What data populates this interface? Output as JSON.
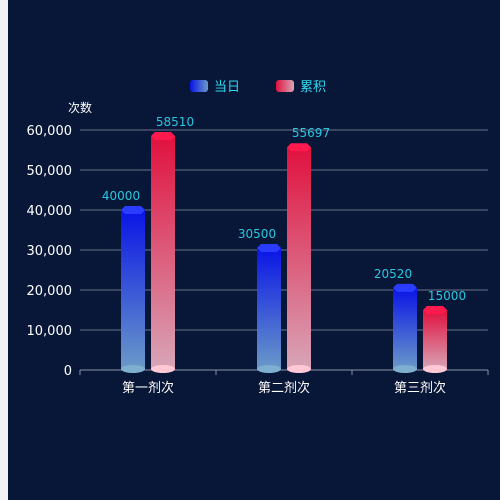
{
  "chart_data": {
    "type": "bar",
    "categories": [
      "第一剂次",
      "第二剂次",
      "第三剂次"
    ],
    "series": [
      {
        "name": "当日",
        "values": [
          40000,
          30500,
          20520
        ],
        "color_top": "#0a14e6",
        "color_bottom": "#6a9ac8",
        "cap_color": "#2a3cff",
        "base_color": "#7eaed0"
      },
      {
        "name": "累积",
        "values": [
          58510,
          55697,
          15000
        ],
        "color_top": "#e0113e",
        "color_bottom": "#d8a6b8",
        "cap_color": "#ff1a4e",
        "base_color": "#ffc8d4"
      }
    ],
    "ylabel": "次数",
    "ylim": [
      0,
      60000
    ],
    "yticks": [
      0,
      10000,
      20000,
      30000,
      40000,
      50000,
      60000
    ],
    "ytick_labels": [
      "0",
      "10,000",
      "20,000",
      "30,000",
      "40,000",
      "50,000",
      "60,000"
    ],
    "grid": true,
    "legend_position": "top-center"
  }
}
